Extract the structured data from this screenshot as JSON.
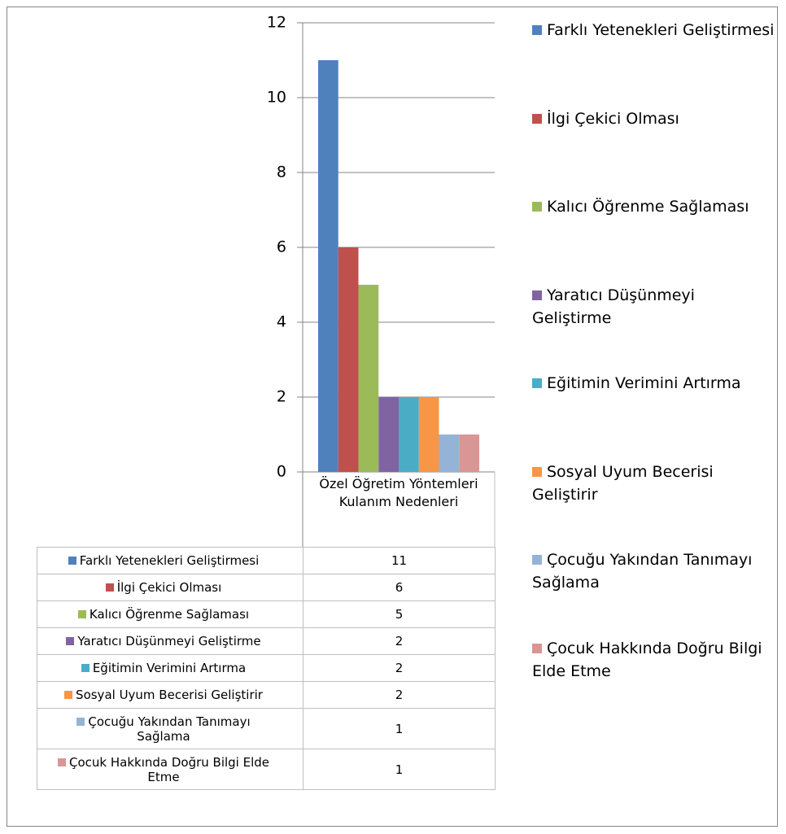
{
  "chart_data": {
    "type": "bar",
    "categories": [
      "Özel Öğretim Yöntemleri Kulanım Nedenleri"
    ],
    "series": [
      {
        "name": "Farklı Yetenekleri Geliştirmesi",
        "color": "#4f81bd",
        "values": [
          11
        ]
      },
      {
        "name": "İlgi Çekici Olması",
        "color": "#c0504d",
        "values": [
          6
        ]
      },
      {
        "name": "Kalıcı Öğrenme Sağlaması",
        "color": "#9bbb59",
        "values": [
          5
        ]
      },
      {
        "name": "Yaratıcı Düşünmeyi Geliştirme",
        "color": "#8064a2",
        "values": [
          2
        ]
      },
      {
        "name": "Eğitimin Verimini Artırma",
        "color": "#4bacc6",
        "values": [
          2
        ]
      },
      {
        "name": "Sosyal Uyum Becerisi Geliştirir",
        "color": "#f79646",
        "values": [
          2
        ]
      },
      {
        "name": "Çocuğu Yakından Tanımayı Sağlama",
        "color": "#95b3d7",
        "values": [
          1
        ]
      },
      {
        "name": "Çocuk Hakkında Doğru Bilgi Elde Etme",
        "color": "#d99694",
        "values": [
          1
        ]
      }
    ],
    "ylim": [
      0,
      12
    ],
    "yticks": [
      0,
      2,
      4,
      6,
      8,
      10,
      12
    ],
    "grid": true,
    "legend": "right",
    "data_table": true
  }
}
